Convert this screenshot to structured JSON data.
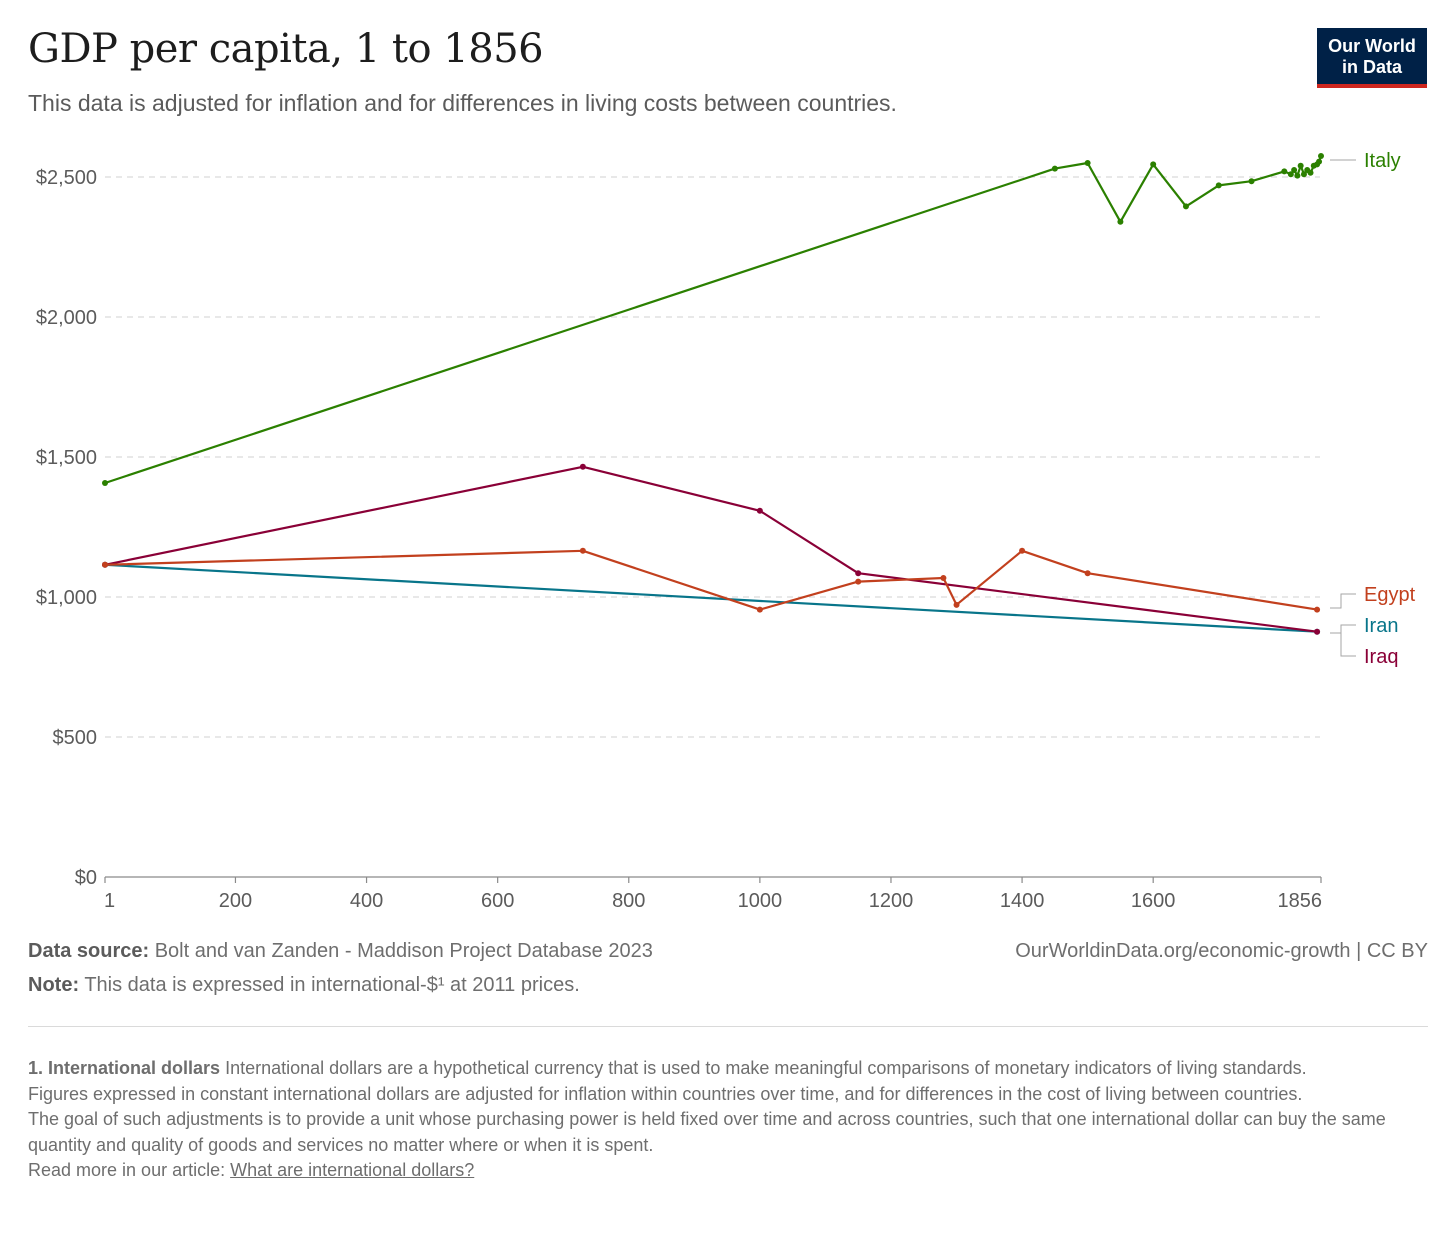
{
  "header": {
    "title": "GDP per capita, 1 to 1856",
    "subtitle": "This data is adjusted for inflation and for differences in living costs between countries."
  },
  "logo": {
    "line1": "Our World",
    "line2": "in Data"
  },
  "colors": {
    "italy": "#2b8000",
    "egypt": "#c2401e",
    "iran": "#08758a",
    "iraq": "#8a0037",
    "grid": "#d9d9d9",
    "axis": "#8a8a8a"
  },
  "chart_data": {
    "type": "line",
    "ylim": [
      0,
      2500
    ],
    "xlim": [
      1,
      1856
    ],
    "y_ticks": [
      {
        "value": 0,
        "label": "$0"
      },
      {
        "value": 500,
        "label": "$500"
      },
      {
        "value": 1000,
        "label": "$1,000"
      },
      {
        "value": 1500,
        "label": "$1,500"
      },
      {
        "value": 2000,
        "label": "$2,000"
      },
      {
        "value": 2500,
        "label": "$2,500"
      }
    ],
    "x_ticks": [
      {
        "value": 1,
        "label": "1"
      },
      {
        "value": 200,
        "label": "200"
      },
      {
        "value": 400,
        "label": "400"
      },
      {
        "value": 600,
        "label": "600"
      },
      {
        "value": 800,
        "label": "800"
      },
      {
        "value": 1000,
        "label": "1000"
      },
      {
        "value": 1200,
        "label": "1200"
      },
      {
        "value": 1400,
        "label": "1400"
      },
      {
        "value": 1600,
        "label": "1600"
      },
      {
        "value": 1856,
        "label": "1856"
      }
    ],
    "grid": true,
    "series": [
      {
        "name": "Italy",
        "color_key": "italy",
        "x": [
          1,
          1450,
          1500,
          1550,
          1600,
          1650,
          1700,
          1750,
          1800,
          1810,
          1815,
          1820,
          1825,
          1830,
          1835,
          1840,
          1845,
          1850,
          1853,
          1856
        ],
        "y": [
          1407,
          2530,
          2550,
          2340,
          2545,
          2395,
          2470,
          2485,
          2520,
          2510,
          2525,
          2505,
          2540,
          2510,
          2525,
          2515,
          2540,
          2545,
          2555,
          2575
        ]
      },
      {
        "name": "Egypt",
        "color_key": "egypt",
        "x": [
          1,
          730,
          1000,
          1150,
          1280,
          1300,
          1400,
          1500,
          1850
        ],
        "y": [
          1115,
          1165,
          955,
          1055,
          1068,
          972,
          1165,
          1085,
          955
        ]
      },
      {
        "name": "Iran",
        "color_key": "iran",
        "x": [
          1,
          1850
        ],
        "y": [
          1115,
          876
        ]
      },
      {
        "name": "Iraq",
        "color_key": "iraq",
        "x": [
          1,
          730,
          1000,
          1150,
          1850
        ],
        "y": [
          1115,
          1465,
          1308,
          1085,
          876
        ]
      }
    ]
  },
  "footer": {
    "source_label": "Data source:",
    "source_text": "Bolt and van Zanden - Maddison Project Database 2023",
    "note_label": "Note:",
    "note_text": "This data is expressed in international-$¹ at 2011 prices.",
    "credit": "OurWorldinData.org/economic-growth | CC BY"
  },
  "footnote": {
    "term": "1. International dollars",
    "para1": "International dollars are a hypothetical currency that is used to make meaningful comparisons of monetary indicators of living standards.",
    "para2": "Figures expressed in constant international dollars are adjusted for inflation within countries over time, and for differences in the cost of living between countries.",
    "para3": "The goal of such adjustments is to provide a unit whose purchasing power is held fixed over time and across countries, such that one international dollar can buy the same quantity and quality of goods and services no matter where or when it is spent.",
    "read_more": "Read more in our article:",
    "link_text": "What are international dollars?"
  }
}
